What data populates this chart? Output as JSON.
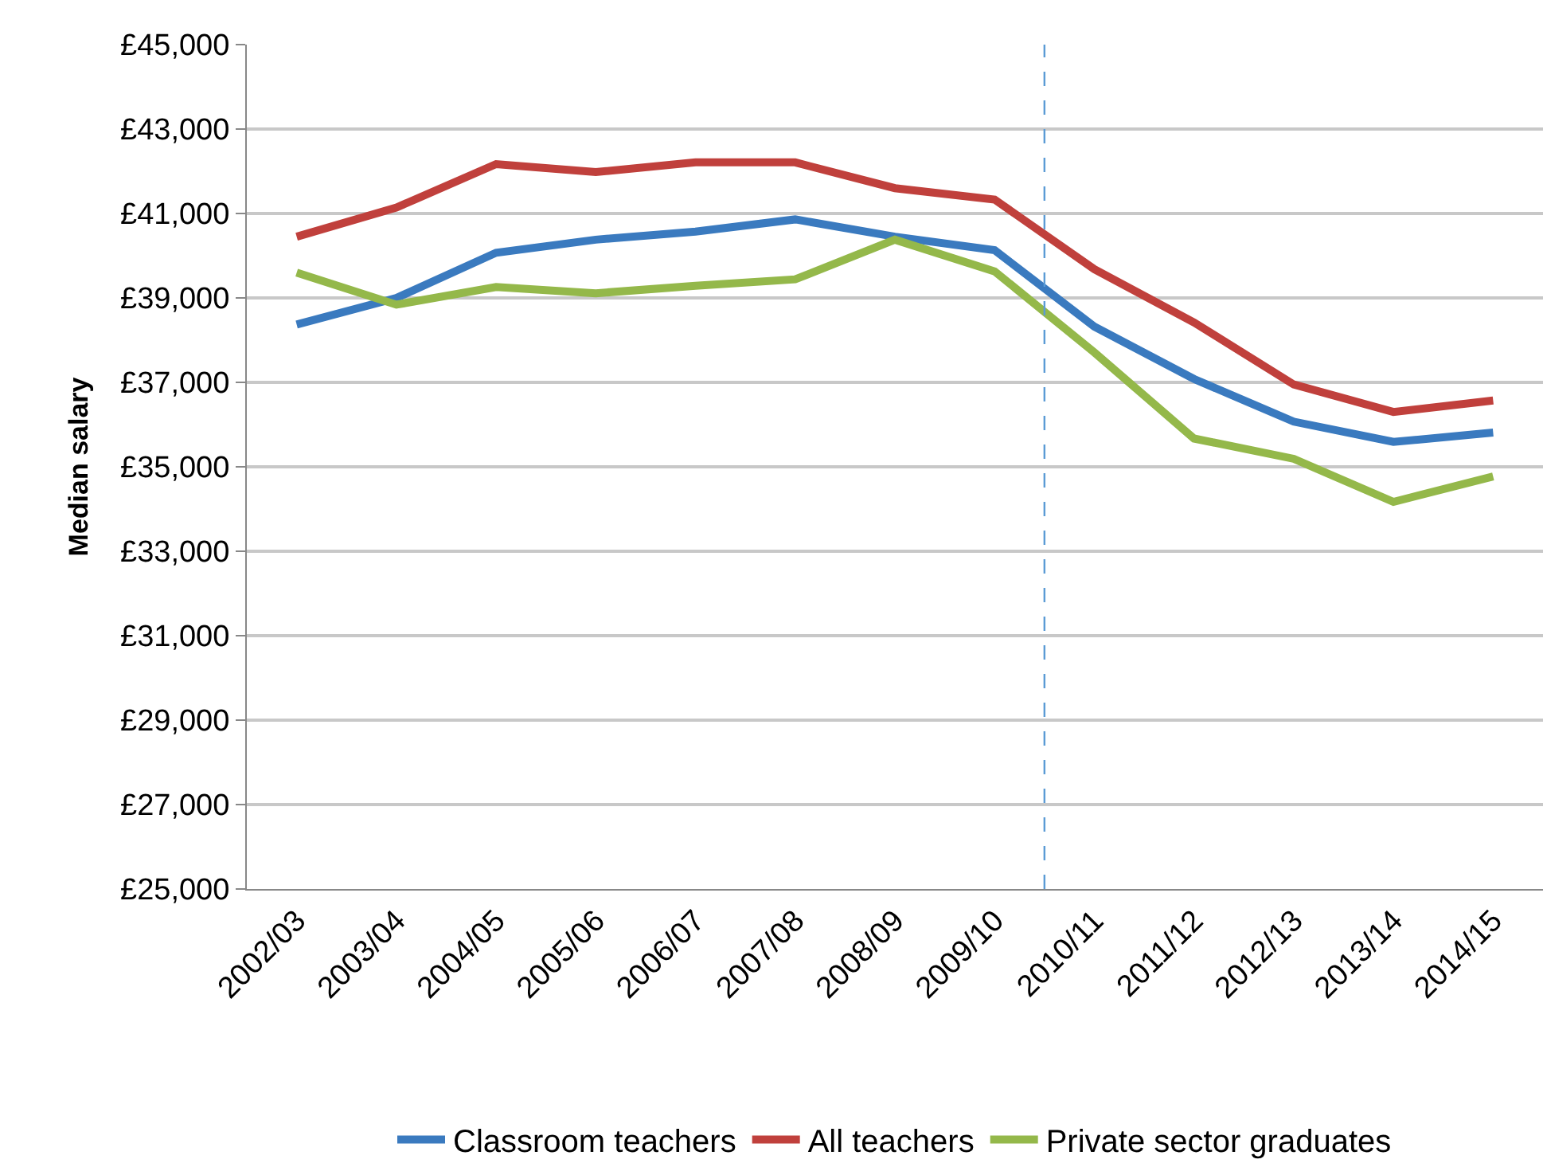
{
  "chart_data": {
    "type": "line",
    "ylabel": "Median salary",
    "categories": [
      "2002/03",
      "2003/04",
      "2004/05",
      "2005/06",
      "2006/07",
      "2007/08",
      "2008/09",
      "2009/10",
      "2010/11",
      "2011/12",
      "2012/13",
      "2013/14",
      "2014/15"
    ],
    "series": [
      {
        "name": "Classroom teachers",
        "color": "#3a7abf",
        "values": [
          38370,
          39000,
          40070,
          40380,
          40570,
          40860,
          40450,
          40130,
          38320,
          37080,
          36070,
          35590,
          35810
        ]
      },
      {
        "name": "All teachers",
        "color": "#c0403c",
        "values": [
          40450,
          41140,
          42170,
          41980,
          42210,
          42210,
          41600,
          41330,
          39680,
          38420,
          36950,
          36300,
          36570
        ]
      },
      {
        "name": "Private sector graduates",
        "color": "#94b84a",
        "values": [
          39600,
          38840,
          39260,
          39110,
          39290,
          39440,
          40380,
          39630,
          37710,
          35670,
          35190,
          34170,
          34770
        ]
      }
    ],
    "ylim": [
      25000,
      45000
    ],
    "yticks": [
      {
        "value": 25000,
        "label": "£25,000"
      },
      {
        "value": 27000,
        "label": "£27,000"
      },
      {
        "value": 29000,
        "label": "£29,000"
      },
      {
        "value": 31000,
        "label": "£31,000"
      },
      {
        "value": 33000,
        "label": "£33,000"
      },
      {
        "value": 35000,
        "label": "£35,000"
      },
      {
        "value": 37000,
        "label": "£37,000"
      },
      {
        "value": 39000,
        "label": "£39,000"
      },
      {
        "value": 41000,
        "label": "£41,000"
      },
      {
        "value": 43000,
        "label": "£43,000"
      },
      {
        "value": 45000,
        "label": "£45,000"
      }
    ],
    "ref_lines": [
      {
        "axis": "x",
        "value": "2010/11",
        "color": "#5b9bd5",
        "line_style": "dashed"
      }
    ],
    "grid": "y",
    "legend": "bottom",
    "marker": "none",
    "line_style": "solid"
  }
}
